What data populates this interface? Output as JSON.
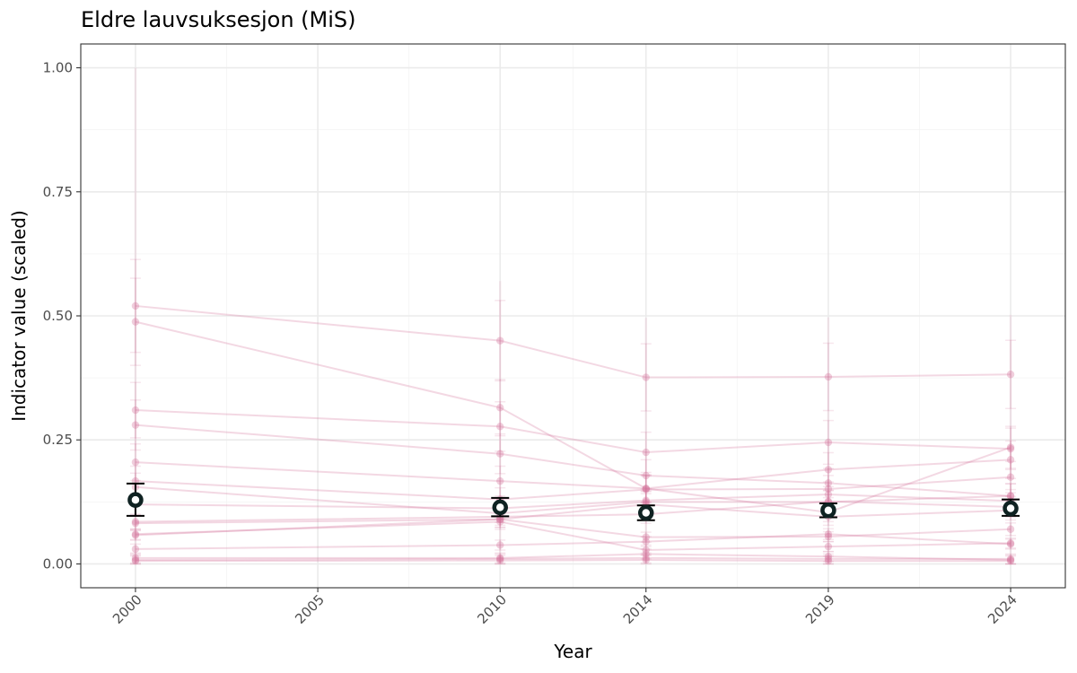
{
  "chart_data": {
    "type": "line",
    "title": "Eldre lauvsuksesjon (MiS)",
    "xlabel": "Year",
    "ylabel": "Indicator value (scaled)",
    "xlim": [
      1998.5,
      2025.5
    ],
    "ylim": [
      -0.048,
      1.048
    ],
    "x_ticks": [
      2000,
      2005,
      2010,
      2014,
      2019,
      2024
    ],
    "y_ticks": [
      0.0,
      0.25,
      0.5,
      0.75,
      1.0
    ],
    "y_tick_labels": [
      "0.00",
      "0.25",
      "0.50",
      "0.75",
      "1.00"
    ],
    "x_minor_ticks": [
      2002.5,
      2007.5,
      2012,
      2016.5,
      2021.5
    ],
    "y_minor_ticks": [
      0.125,
      0.375,
      0.625,
      0.875
    ],
    "grid": true,
    "colors": {
      "series": "#d4729a",
      "summary": "#0f2222",
      "summary_fill": "#ffffff",
      "error_bar": "#000000"
    },
    "x": [
      2000,
      2010,
      2014,
      2019,
      2024
    ],
    "series": [
      {
        "values": [
          0.52,
          0.45,
          0.376,
          0.377,
          0.382
        ]
      },
      {
        "values": [
          0.488,
          0.315,
          0.152,
          0.104,
          0.235
        ]
      },
      {
        "values": [
          0.31,
          0.277,
          0.225,
          0.245,
          0.232
        ]
      },
      {
        "values": [
          0.28,
          0.222,
          0.178,
          0.163,
          0.137
        ]
      },
      {
        "values": [
          0.205,
          0.167,
          0.152,
          0.19,
          0.21
        ]
      },
      {
        "values": [
          0.167,
          0.13,
          0.15,
          0.151,
          0.175
        ]
      },
      {
        "values": [
          0.155,
          0.102,
          0.125,
          0.125,
          0.137
        ]
      },
      {
        "values": [
          0.12,
          0.112,
          0.128,
          0.14,
          0.127
        ]
      },
      {
        "values": [
          0.085,
          0.095,
          0.1,
          0.126,
          0.115
        ]
      },
      {
        "values": [
          0.082,
          0.09,
          0.054,
          0.055,
          0.07
        ]
      },
      {
        "values": [
          0.06,
          0.085,
          0.028,
          0.035,
          0.042
        ]
      },
      {
        "values": [
          0.058,
          0.09,
          0.12,
          0.095,
          0.108
        ]
      },
      {
        "values": [
          0.03,
          0.038,
          0.045,
          0.06,
          0.04
        ]
      },
      {
        "values": [
          0.012,
          0.012,
          0.02,
          0.015,
          0.008
        ]
      },
      {
        "values": [
          0.008,
          0.01,
          0.012,
          0.01,
          0.01
        ]
      },
      {
        "values": [
          0.006,
          0.007,
          0.008,
          0.006,
          0.006
        ]
      }
    ],
    "summary": {
      "values": [
        0.129,
        0.114,
        0.103,
        0.108,
        0.112
      ],
      "lower": [
        0.097,
        0.096,
        0.088,
        0.094,
        0.097
      ],
      "upper": [
        0.162,
        0.133,
        0.118,
        0.122,
        0.13
      ]
    }
  }
}
